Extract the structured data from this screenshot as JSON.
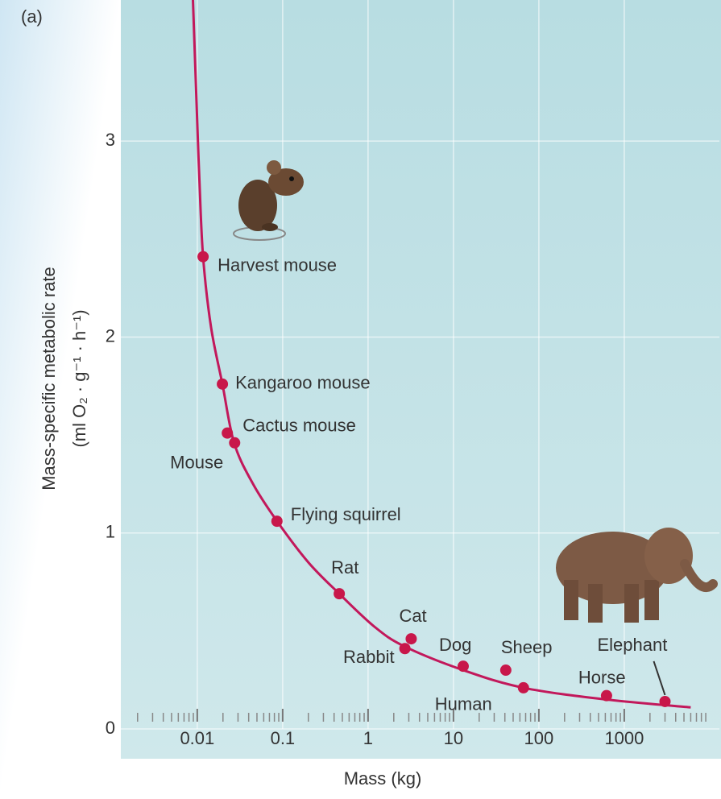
{
  "chart_data": {
    "type": "scatter",
    "panel_label": "(a)",
    "xlabel": "Mass (kg)",
    "ylabel": "Mass-specific metabolic rate",
    "ylabel_units": "(ml O₂ · g⁻¹ · h⁻¹)",
    "xscale": "log",
    "xlim": [
      0.00142,
      9800
    ],
    "ylim": [
      0,
      3.72
    ],
    "xticks": [
      0.01,
      0.1,
      1,
      10,
      100,
      1000
    ],
    "yticks": [
      0,
      1,
      2,
      3
    ],
    "grid": true,
    "points": {
      "color": "#c8174a",
      "labels": [
        "Harvest mouse",
        "Kangaroo mouse",
        "Cactus mouse",
        "Mouse",
        "Flying squirrel",
        "Rat",
        "Cat",
        "Rabbit",
        "Dog",
        "Sheep",
        "Human",
        "Horse",
        "Elephant"
      ],
      "x": [
        0.0117,
        0.0197,
        0.0274,
        0.0225,
        0.0857,
        0.46,
        3.2,
        2.7,
        13,
        41,
        66,
        620,
        3000
      ],
      "values": [
        2.41,
        1.76,
        1.46,
        1.51,
        1.06,
        0.69,
        0.46,
        0.41,
        0.32,
        0.3,
        0.21,
        0.17,
        0.14
      ]
    },
    "curve": {
      "color": "#c2185b",
      "x": [
        0.0089,
        0.0098,
        0.0106,
        0.0117,
        0.0145,
        0.0197,
        0.027,
        0.045,
        0.086,
        0.2,
        0.46,
        1.2,
        2.7,
        13,
        66,
        620,
        6000
      ],
      "values": [
        3.72,
        3.2,
        2.8,
        2.41,
        2.05,
        1.76,
        1.46,
        1.25,
        1.06,
        0.85,
        0.69,
        0.52,
        0.42,
        0.3,
        0.21,
        0.15,
        0.11
      ]
    }
  }
}
